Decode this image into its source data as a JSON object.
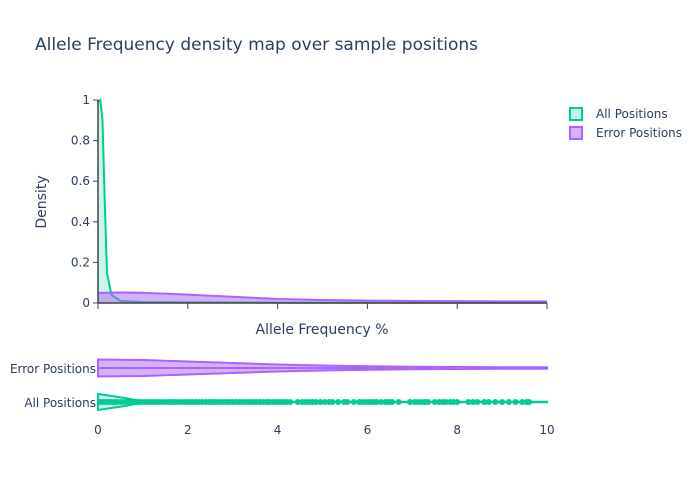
{
  "chart_data": {
    "type": "area",
    "title": "Allele Frequency density map over sample positions",
    "xlabel": "Allele Frequency %",
    "ylabel": "Density",
    "xlim": [
      0,
      10
    ],
    "ylim": [
      0,
      1
    ],
    "x_ticks": [
      "0",
      "2",
      "4",
      "6",
      "8",
      "10"
    ],
    "y_ticks": [
      "0",
      "0.2",
      "0.4",
      "0.6",
      "0.8",
      "1"
    ],
    "legend_position": "top-right",
    "series": [
      {
        "name": "All Positions",
        "color": "#00cc96",
        "fill": "rgba(0,204,150,0.2)",
        "curve": [
          [
            0,
            0.99
          ],
          [
            0.05,
            1.0
          ],
          [
            0.1,
            0.9
          ],
          [
            0.15,
            0.5
          ],
          [
            0.2,
            0.15
          ],
          [
            0.3,
            0.04
          ],
          [
            0.5,
            0.01
          ],
          [
            1,
            0.005
          ],
          [
            2,
            0.003
          ],
          [
            4,
            0.002
          ],
          [
            6,
            0.001
          ],
          [
            8,
            0.001
          ],
          [
            10,
            0.001
          ]
        ],
        "violin": [
          [
            0,
            8
          ],
          [
            0.3,
            6
          ],
          [
            0.6,
            4
          ],
          [
            0.9,
            1.5
          ],
          [
            1.2,
            0.6
          ],
          [
            2,
            0.4
          ],
          [
            4,
            0.3
          ],
          [
            10,
            0.3
          ]
        ],
        "rug_points": [
          0.05,
          0.12,
          0.18,
          0.25,
          0.31,
          0.38,
          0.44,
          0.52,
          0.6,
          0.67,
          0.75,
          0.83,
          0.9,
          0.98,
          1.05,
          1.12,
          1.2,
          1.28,
          1.35,
          1.42,
          1.5,
          1.58,
          1.65,
          1.72,
          1.8,
          1.88,
          1.95,
          2.02,
          2.1,
          2.18,
          2.25,
          2.32,
          2.4,
          2.48,
          2.55,
          2.62,
          2.7,
          2.78,
          2.85,
          2.92,
          3.0,
          3.08,
          3.15,
          3.22,
          3.3,
          3.38,
          3.45,
          3.52,
          3.6,
          3.68,
          3.75,
          3.82,
          3.9,
          3.98,
          4.05,
          4.12,
          4.2,
          4.28,
          4.45,
          4.55,
          4.62,
          4.7,
          4.78,
          4.85,
          4.95,
          5.05,
          5.15,
          5.22,
          5.35,
          5.48,
          5.55,
          5.7,
          5.82,
          5.9,
          5.98,
          6.05,
          6.12,
          6.2,
          6.3,
          6.4,
          6.48,
          6.55,
          6.7,
          6.95,
          7.05,
          7.12,
          7.2,
          7.28,
          7.35,
          7.5,
          7.6,
          7.68,
          7.75,
          7.85,
          7.92,
          8.0,
          8.25,
          8.35,
          8.45,
          8.6,
          8.7,
          8.85,
          9.0,
          9.15,
          9.3,
          9.45,
          9.55,
          9.6
        ]
      },
      {
        "name": "Error Positions",
        "color": "#ab63fa",
        "fill": "rgba(171,99,250,0.5)",
        "curve": [
          [
            0,
            0.05
          ],
          [
            0.5,
            0.052
          ],
          [
            1,
            0.05
          ],
          [
            1.5,
            0.046
          ],
          [
            2,
            0.041
          ],
          [
            2.5,
            0.036
          ],
          [
            3,
            0.031
          ],
          [
            3.5,
            0.025
          ],
          [
            4,
            0.02
          ],
          [
            5,
            0.015
          ],
          [
            6,
            0.012
          ],
          [
            7,
            0.01
          ],
          [
            8,
            0.009
          ],
          [
            9,
            0.008
          ],
          [
            10,
            0.008
          ]
        ],
        "violin": [
          [
            0,
            8.5
          ],
          [
            1,
            8
          ],
          [
            2,
            6.5
          ],
          [
            3,
            5
          ],
          [
            4,
            3.5
          ],
          [
            5,
            2.5
          ],
          [
            6,
            1.8
          ],
          [
            7,
            1.3
          ],
          [
            8,
            1.0
          ],
          [
            9,
            0.8
          ],
          [
            10,
            0.7
          ]
        ]
      }
    ],
    "violin_categories": [
      "Error Positions",
      "All Positions"
    ]
  }
}
